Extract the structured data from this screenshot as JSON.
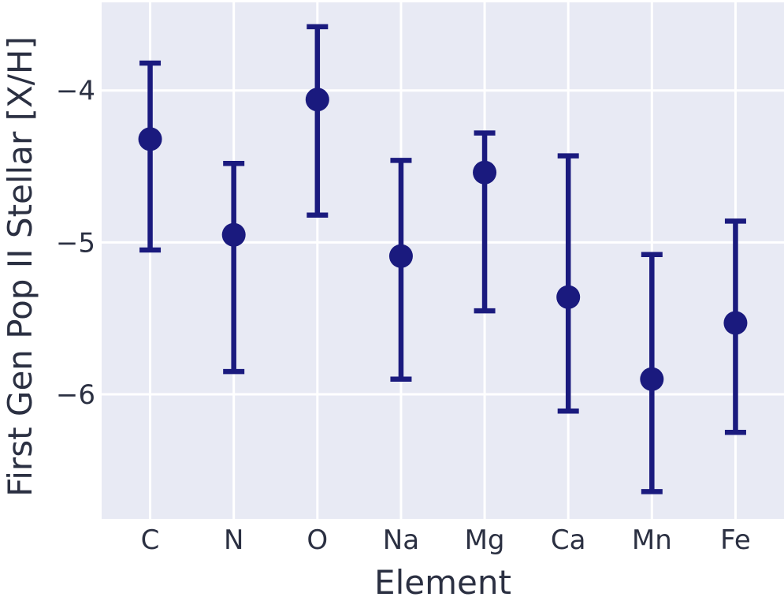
{
  "chart_data": {
    "type": "scatter",
    "subtype": "errorbar",
    "title": "",
    "xlabel": "Element",
    "ylabel": "First Gen Pop II Stellar [X/H]",
    "categories": [
      "C",
      "N",
      "O",
      "Na",
      "Mg",
      "Ca",
      "Mn",
      "Fe"
    ],
    "series": [
      {
        "name": "First Gen Pop II Stellar [X/H]",
        "values": [
          -4.32,
          -4.95,
          -4.06,
          -5.09,
          -4.54,
          -5.36,
          -5.9,
          -5.53
        ],
        "error_upper_abs": [
          -3.82,
          -4.48,
          -3.58,
          -4.46,
          -4.28,
          -4.43,
          -5.08,
          -4.86
        ],
        "error_lower_abs": [
          -5.05,
          -5.85,
          -4.82,
          -5.9,
          -5.45,
          -6.11,
          -6.64,
          -6.25
        ]
      }
    ],
    "yticks": {
      "values": [
        -4,
        -5,
        -6
      ],
      "labels": [
        "−4",
        "−5",
        "−6"
      ]
    },
    "xlim": [
      -0.58,
      7.58
    ],
    "ylim": [
      -6.82,
      -3.42
    ],
    "grid": true,
    "legend": false,
    "colors": {
      "marker": "#1a1a7e",
      "errorbar": "#1a1a7e",
      "plot_bg": "#e8eaf4",
      "grid": "#ffffff",
      "text": "#2b3042"
    }
  }
}
